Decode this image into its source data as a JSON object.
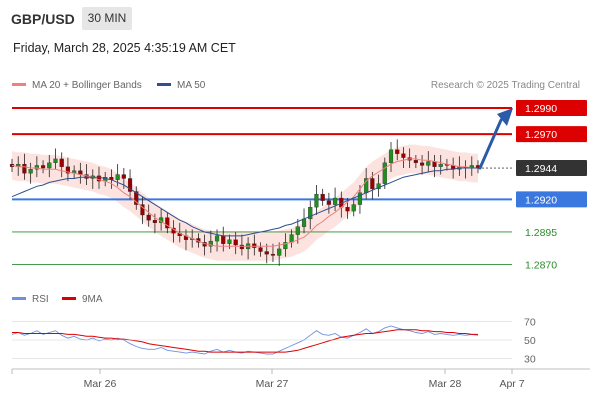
{
  "header": {
    "symbol": "GBP/USD",
    "timeframe": "30 MIN"
  },
  "datetime": "Friday, March 28, 2025 4:35:19 AM CET",
  "legend": {
    "ma20_label": "MA 20 + Bollinger Bands",
    "ma50_label": "MA 50",
    "credit": "Research © 2025 Trading Central",
    "rsi_label": "RSI",
    "ma9_label": "9MA"
  },
  "colors": {
    "ma20": "#f08080",
    "ma50": "#2f4f8f",
    "bollinger_fill": "#fde0dc",
    "resistance": "#dd0000",
    "support_blue": "#3a78e0",
    "support_green": "#2e8b2e",
    "current": "#333333",
    "arrow": "#2a5aa8",
    "rsi": "#6f8fe0",
    "rsi_ma": "#dd0000"
  },
  "levels": [
    {
      "value": "1.2990",
      "type": "resistance"
    },
    {
      "value": "1.2970",
      "type": "resistance"
    },
    {
      "value": "1.2944",
      "type": "current"
    },
    {
      "value": "1.2920",
      "type": "pivot"
    },
    {
      "value": "1.2895",
      "type": "support"
    },
    {
      "value": "1.2870",
      "type": "support"
    }
  ],
  "xaxis": {
    "labels": [
      "Mar 26",
      "Mar 27",
      "Mar 28",
      "Apr 7"
    ]
  },
  "rsi_axis": {
    "labels": [
      "70",
      "50",
      "30"
    ]
  },
  "chart_data": {
    "type": "candlestick",
    "y_range": [
      1.2862,
      1.3
    ],
    "price_series": [
      1.2945,
      1.2947,
      1.294,
      1.2943,
      1.2946,
      1.2944,
      1.2948,
      1.2951,
      1.2945,
      1.294,
      1.2942,
      1.2939,
      1.2936,
      1.2938,
      1.2934,
      1.2937,
      1.2935,
      1.2939,
      1.2936,
      1.2926,
      1.2916,
      1.2908,
      1.2904,
      1.2902,
      1.2906,
      1.2898,
      1.2894,
      1.2892,
      1.2889,
      1.289,
      1.2887,
      1.2884,
      1.2888,
      1.2892,
      1.2886,
      1.2889,
      1.2885,
      1.2882,
      1.2886,
      1.2883,
      1.288,
      1.2878,
      1.2877,
      1.2882,
      1.2887,
      1.2893,
      1.2899,
      1.2905,
      1.2914,
      1.2924,
      1.2919,
      1.2916,
      1.2921,
      1.2914,
      1.2911,
      1.2916,
      1.2925,
      1.2936,
      1.2928,
      1.2932,
      1.2948,
      1.2958,
      1.2955,
      1.2952,
      1.295,
      1.2948,
      1.2946,
      1.2949,
      1.2945,
      1.2947,
      1.2946,
      1.2943,
      1.2945,
      1.2944,
      1.2946,
      1.2944
    ],
    "ma20_series": [
      1.2946,
      1.2945,
      1.2945,
      1.2944,
      1.2944,
      1.2943,
      1.2943,
      1.2943,
      1.2942,
      1.2941,
      1.294,
      1.2939,
      1.2938,
      1.2937,
      1.2935,
      1.2934,
      1.2932,
      1.2929,
      1.2925,
      1.2922,
      1.2918,
      1.2914,
      1.291,
      1.2906,
      1.2903,
      1.29,
      1.2897,
      1.2894,
      1.2892,
      1.289,
      1.2888,
      1.2886,
      1.2885,
      1.2884,
      1.2884,
      1.2884,
      1.2884,
      1.2884,
      1.2884,
      1.2884,
      1.2884,
      1.2884,
      1.2884,
      1.2885,
      1.2886,
      1.2887,
      1.2889,
      1.2891,
      1.2895,
      1.29,
      1.2903,
      1.2907,
      1.291,
      1.2914,
      1.2918,
      1.2922,
      1.2928,
      1.2934,
      1.2938,
      1.2941,
      1.2944,
      1.2947,
      1.2949,
      1.295,
      1.2951,
      1.2951,
      1.295,
      1.295,
      1.2949,
      1.2948,
      1.2947,
      1.2946,
      1.2945,
      1.2945,
      1.2944,
      1.2944
    ],
    "ma50_series": [
      1.2922,
      1.2924,
      1.2926,
      1.2928,
      1.293,
      1.2931,
      1.2933,
      1.2934,
      1.2935,
      1.2936,
      1.2936,
      1.2937,
      1.2937,
      1.2937,
      1.2937,
      1.2936,
      1.2935,
      1.2933,
      1.2931,
      1.2928,
      1.2925,
      1.2922,
      1.2919,
      1.2916,
      1.2913,
      1.291,
      1.2907,
      1.2904,
      1.2902,
      1.2899,
      1.2897,
      1.2895,
      1.2894,
      1.2893,
      1.2892,
      1.2892,
      1.2892,
      1.2892,
      1.2893,
      1.2894,
      1.2895,
      1.2896,
      1.2897,
      1.2898,
      1.29,
      1.2901,
      1.2903,
      1.2905,
      1.2907,
      1.2909,
      1.2911,
      1.2913,
      1.2915,
      1.2917,
      1.2919,
      1.2921,
      1.2923,
      1.2925,
      1.2927,
      1.2929,
      1.2931,
      1.2933,
      1.2935,
      1.2937,
      1.2938,
      1.2939,
      1.294,
      1.2941,
      1.2942,
      1.2942,
      1.2943,
      1.2943,
      1.2944,
      1.2944,
      1.2944,
      1.2944
    ],
    "rsi_range": [
      20,
      80
    ],
    "rsi_series": [
      56,
      58,
      55,
      57,
      60,
      56,
      58,
      60,
      55,
      52,
      54,
      51,
      50,
      52,
      49,
      51,
      50,
      52,
      50,
      46,
      43,
      41,
      40,
      40,
      42,
      39,
      38,
      37,
      36,
      37,
      36,
      35,
      38,
      40,
      37,
      39,
      37,
      36,
      38,
      37,
      36,
      35,
      35,
      38,
      41,
      44,
      47,
      50,
      55,
      60,
      56,
      55,
      57,
      53,
      52,
      55,
      58,
      62,
      57,
      59,
      63,
      65,
      63,
      61,
      60,
      58,
      57,
      59,
      56,
      57,
      56,
      55,
      56,
      55,
      56,
      55
    ],
    "rsi_ma_series": [
      58,
      58,
      57,
      57,
      57,
      57,
      57,
      57,
      57,
      56,
      56,
      55,
      54,
      54,
      53,
      52,
      52,
      51,
      51,
      50,
      49,
      48,
      46,
      45,
      44,
      43,
      42,
      41,
      40,
      39,
      38,
      38,
      37,
      37,
      37,
      37,
      37,
      37,
      37,
      37,
      37,
      37,
      37,
      37,
      37,
      38,
      39,
      41,
      43,
      45,
      47,
      49,
      51,
      53,
      54,
      55,
      56,
      57,
      57,
      58,
      59,
      60,
      61,
      61,
      61,
      61,
      60,
      60,
      59,
      59,
      58,
      58,
      57,
      57,
      56,
      56
    ]
  }
}
